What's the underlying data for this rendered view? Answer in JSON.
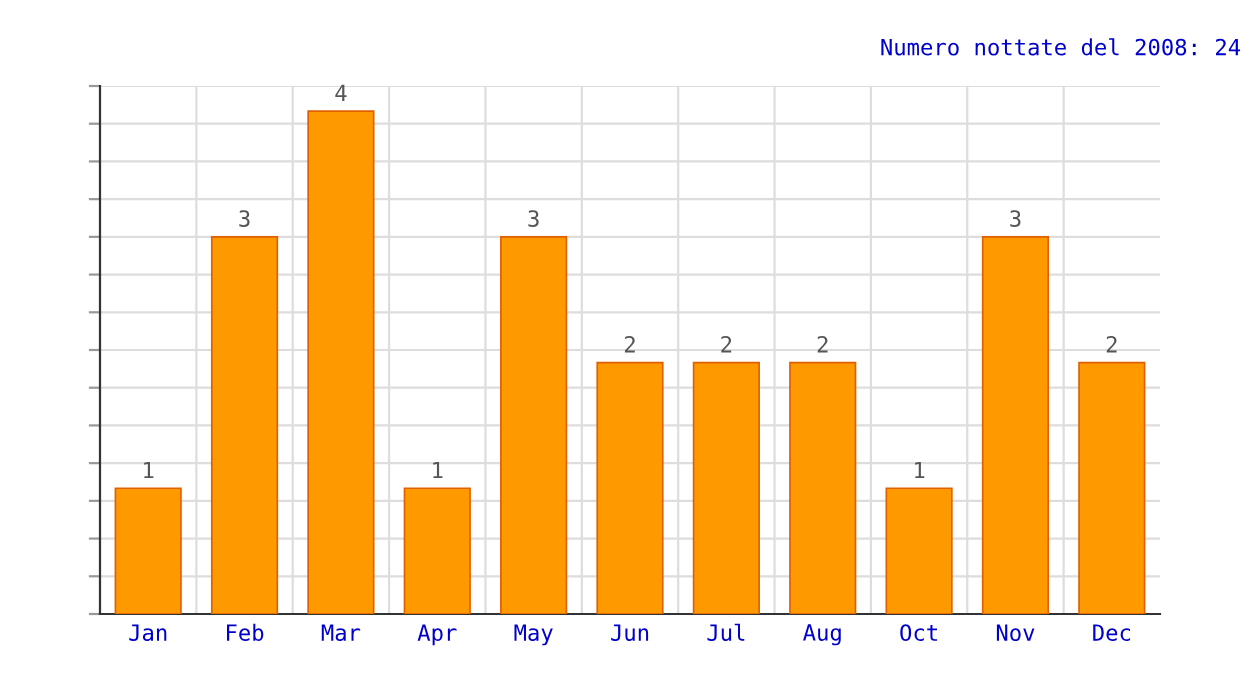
{
  "chart_data": {
    "type": "bar",
    "title": "Numero nottate del 2008: 24",
    "categories": [
      "Jan",
      "Feb",
      "Mar",
      "Apr",
      "May",
      "Jun",
      "Jul",
      "Aug",
      "Oct",
      "Nov",
      "Dec"
    ],
    "values": [
      1,
      3,
      4,
      1,
      3,
      2,
      2,
      2,
      1,
      3,
      2
    ],
    "color": "#ff9900",
    "ylim": [
      0,
      4.2
    ],
    "yticks": [
      {
        "value": 0,
        "label": null
      },
      {
        "value": 0.3,
        "label": null
      },
      {
        "value": 0.6,
        "label": null
      },
      {
        "value": 0.9,
        "label": null
      },
      {
        "value": 1.2,
        "label": null
      },
      {
        "value": 1.5,
        "label": null
      },
      {
        "value": 1.8,
        "label": null
      },
      {
        "value": 2.1,
        "label": null
      },
      {
        "value": 2.4,
        "label": null
      },
      {
        "value": 2.7,
        "label": null
      },
      {
        "value": 3.0,
        "label": null
      },
      {
        "value": 3.3,
        "label": null
      },
      {
        "value": 3.6,
        "label": null
      },
      {
        "value": 3.9,
        "label": null
      },
      {
        "value": 4.2,
        "label": null
      }
    ],
    "grid": true,
    "data_labels": true,
    "tick_labels": "x"
  }
}
